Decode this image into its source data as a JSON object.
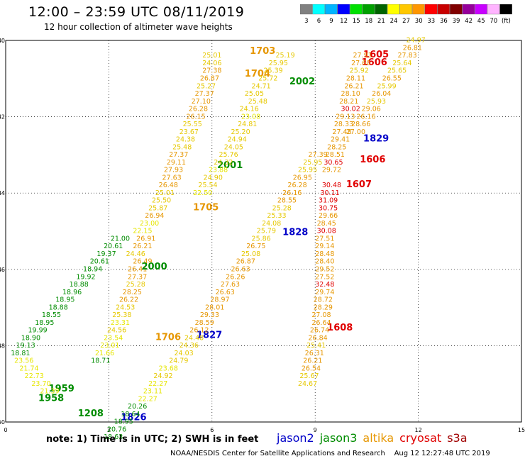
{
  "header": {
    "title": "12:00 – 23:59 UTC 08/11/2019",
    "subtitle": "12 hour collection of altimeter wave heights"
  },
  "colorbar": {
    "colors": [
      "#808080",
      "#00ffff",
      "#00b4ff",
      "#0000ff",
      "#00e000",
      "#00a000",
      "#006400",
      "#ffff00",
      "#ffc800",
      "#ff9600",
      "#ff0000",
      "#c80000",
      "#800000",
      "#96009b",
      "#c800ff",
      "#ffb4ff",
      "#000000"
    ],
    "labels": [
      "3",
      "6",
      "9",
      "12",
      "15",
      "18",
      "21",
      "24",
      "27",
      "30",
      "33",
      "36",
      "39",
      "42",
      "45",
      "70",
      "(ft)"
    ]
  },
  "map": {
    "lon_ticks": [
      "0",
      "3",
      "6",
      "9",
      "12",
      "15"
    ],
    "lat_ticks": [
      "40",
      "42",
      "44",
      "46",
      "48",
      "50"
    ],
    "xlim": [
      0,
      15
    ],
    "ylim": [
      40,
      50
    ]
  },
  "level_colors": {
    "g": "#008c00",
    "lg": "#1ea01e",
    "y": "#e6e600",
    "yo": "#e6c800",
    "o": "#e69600",
    "r": "#e00000"
  },
  "observations": [
    {
      "x": 5.72,
      "y": 40.45,
      "t": "25.01",
      "c": "yo"
    },
    {
      "x": 5.72,
      "y": 40.65,
      "t": "24.06",
      "c": "yo"
    },
    {
      "x": 5.72,
      "y": 40.85,
      "t": "27.38",
      "c": "o"
    },
    {
      "x": 5.65,
      "y": 41.05,
      "t": "26.87",
      "c": "o"
    },
    {
      "x": 5.55,
      "y": 41.25,
      "t": "25.27",
      "c": "yo"
    },
    {
      "x": 5.5,
      "y": 41.45,
      "t": "27.37",
      "c": "o"
    },
    {
      "x": 5.4,
      "y": 41.65,
      "t": "27.10",
      "c": "o"
    },
    {
      "x": 5.32,
      "y": 41.85,
      "t": "26.28",
      "c": "o"
    },
    {
      "x": 5.25,
      "y": 42.05,
      "t": "26.15",
      "c": "o"
    },
    {
      "x": 5.15,
      "y": 42.25,
      "t": "25.55",
      "c": "yo"
    },
    {
      "x": 5.05,
      "y": 42.45,
      "t": "23.67",
      "c": "yo"
    },
    {
      "x": 4.95,
      "y": 42.65,
      "t": "24.38",
      "c": "yo"
    },
    {
      "x": 4.85,
      "y": 42.85,
      "t": "25.48",
      "c": "yo"
    },
    {
      "x": 4.75,
      "y": 43.05,
      "t": "27.37",
      "c": "o"
    },
    {
      "x": 4.68,
      "y": 43.25,
      "t": "29.11",
      "c": "o"
    },
    {
      "x": 4.6,
      "y": 43.45,
      "t": "27.93",
      "c": "o"
    },
    {
      "x": 4.55,
      "y": 43.65,
      "t": "27.63",
      "c": "o"
    },
    {
      "x": 4.45,
      "y": 43.85,
      "t": "26.48",
      "c": "o"
    },
    {
      "x": 4.35,
      "y": 44.05,
      "t": "25.01",
      "c": "yo"
    },
    {
      "x": 4.25,
      "y": 44.25,
      "t": "25.50",
      "c": "yo"
    },
    {
      "x": 4.15,
      "y": 44.45,
      "t": "25.87",
      "c": "yo"
    },
    {
      "x": 4.05,
      "y": 44.65,
      "t": "26.94",
      "c": "o"
    },
    {
      "x": 3.9,
      "y": 44.85,
      "t": "23.00",
      "c": "y"
    },
    {
      "x": 3.7,
      "y": 45.05,
      "t": "22.15",
      "c": "y"
    },
    {
      "x": 3.8,
      "y": 45.25,
      "t": "26.91",
      "c": "o"
    },
    {
      "x": 3.7,
      "y": 45.45,
      "t": "26.21",
      "c": "o"
    },
    {
      "x": 3.5,
      "y": 45.65,
      "t": "24.46",
      "c": "yo"
    },
    {
      "x": 3.7,
      "y": 45.85,
      "t": "26.49",
      "c": "o"
    },
    {
      "x": 3.55,
      "y": 46.05,
      "t": "26.41",
      "c": "o"
    },
    {
      "x": 3.55,
      "y": 46.25,
      "t": "27.37",
      "c": "o"
    },
    {
      "x": 3.5,
      "y": 46.45,
      "t": "25.28",
      "c": "yo"
    },
    {
      "x": 3.4,
      "y": 46.65,
      "t": "28.25",
      "c": "o"
    },
    {
      "x": 3.3,
      "y": 46.85,
      "t": "26.22",
      "c": "o"
    },
    {
      "x": 3.2,
      "y": 47.05,
      "t": "24.53",
      "c": "yo"
    },
    {
      "x": 3.1,
      "y": 47.25,
      "t": "25.38",
      "c": "yo"
    },
    {
      "x": 3.05,
      "y": 47.45,
      "t": "23.31",
      "c": "y"
    },
    {
      "x": 2.95,
      "y": 47.65,
      "t": "24.56",
      "c": "yo"
    },
    {
      "x": 2.85,
      "y": 47.85,
      "t": "23.54",
      "c": "y"
    },
    {
      "x": 2.75,
      "y": 48.05,
      "t": "23.01",
      "c": "y"
    },
    {
      "x": 2.6,
      "y": 48.25,
      "t": "21.66",
      "c": "y"
    },
    {
      "x": 2.48,
      "y": 48.45,
      "t": "18.71",
      "c": "g"
    },
    {
      "x": 7.1,
      "y": 40.35,
      "t": "1703",
      "c": "o",
      "label": true
    },
    {
      "x": 6.95,
      "y": 40.95,
      "t": "1704",
      "c": "o",
      "label": true
    },
    {
      "x": 8.25,
      "y": 41.15,
      "t": "2002",
      "c": "g",
      "label": true
    },
    {
      "x": 6.15,
      "y": 43.35,
      "t": "2001",
      "c": "g",
      "label": true
    },
    {
      "x": 5.45,
      "y": 44.45,
      "t": "1705",
      "c": "o",
      "label": true
    },
    {
      "x": 3.95,
      "y": 46.0,
      "t": "2000",
      "c": "g",
      "label": true
    },
    {
      "x": 4.35,
      "y": 47.85,
      "t": "1706",
      "c": "o",
      "label": true
    },
    {
      "x": 5.55,
      "y": 47.8,
      "t": "1827",
      "c": "b",
      "label": true
    },
    {
      "x": 3.35,
      "y": 49.95,
      "t": "1826",
      "c": "b",
      "label": true
    },
    {
      "x": 2.1,
      "y": 49.85,
      "t": "1208",
      "c": "g",
      "label": true
    },
    {
      "x": 1.25,
      "y": 49.2,
      "t": "1959",
      "c": "g",
      "label": true
    },
    {
      "x": 0.95,
      "y": 49.45,
      "t": "1958",
      "c": "g",
      "label": true
    },
    {
      "x": 8.05,
      "y": 45.1,
      "t": "1828",
      "c": "b",
      "label": true
    },
    {
      "x": 10.4,
      "y": 42.65,
      "t": "1829",
      "c": "b",
      "label": true
    },
    {
      "x": 10.3,
      "y": 43.2,
      "t": "1606",
      "c": "r",
      "label": true
    },
    {
      "x": 9.9,
      "y": 43.85,
      "t": "1607",
      "c": "r",
      "label": true
    },
    {
      "x": 9.35,
      "y": 47.6,
      "t": "1608",
      "c": "r",
      "label": true
    },
    {
      "x": 10.4,
      "y": 40.45,
      "t": "1605",
      "c": "r",
      "label": true
    },
    {
      "x": 10.35,
      "y": 40.65,
      "t": "1606",
      "c": "r",
      "label": true
    },
    {
      "x": 7.85,
      "y": 40.45,
      "t": "25.19",
      "c": "yo"
    },
    {
      "x": 7.65,
      "y": 40.65,
      "t": "25.95",
      "c": "yo"
    },
    {
      "x": 7.5,
      "y": 40.85,
      "t": "25.39",
      "c": "yo"
    },
    {
      "x": 7.35,
      "y": 41.05,
      "t": "25.72",
      "c": "yo"
    },
    {
      "x": 7.15,
      "y": 41.25,
      "t": "24.71",
      "c": "yo"
    },
    {
      "x": 6.95,
      "y": 41.45,
      "t": "25.05",
      "c": "yo"
    },
    {
      "x": 7.05,
      "y": 41.65,
      "t": "25.48",
      "c": "yo"
    },
    {
      "x": 6.8,
      "y": 41.85,
      "t": "24.16",
      "c": "yo"
    },
    {
      "x": 6.85,
      "y": 42.05,
      "t": "23.08",
      "c": "y"
    },
    {
      "x": 6.75,
      "y": 42.25,
      "t": "24.81",
      "c": "yo"
    },
    {
      "x": 6.55,
      "y": 42.45,
      "t": "25.20",
      "c": "yo"
    },
    {
      "x": 6.45,
      "y": 42.65,
      "t": "24.94",
      "c": "yo"
    },
    {
      "x": 6.35,
      "y": 42.85,
      "t": "24.05",
      "c": "yo"
    },
    {
      "x": 6.2,
      "y": 43.05,
      "t": "25.76",
      "c": "yo"
    },
    {
      "x": 6.05,
      "y": 43.25,
      "t": "24.32",
      "c": "yo"
    },
    {
      "x": 5.9,
      "y": 43.45,
      "t": "23.88",
      "c": "y"
    },
    {
      "x": 5.75,
      "y": 43.65,
      "t": "24.90",
      "c": "yo"
    },
    {
      "x": 5.6,
      "y": 43.85,
      "t": "25.54",
      "c": "yo"
    },
    {
      "x": 5.45,
      "y": 44.05,
      "t": "22.50",
      "c": "y"
    },
    {
      "x": 10.1,
      "y": 40.45,
      "t": "27.91",
      "c": "o"
    },
    {
      "x": 10.05,
      "y": 40.65,
      "t": "27.60",
      "c": "o"
    },
    {
      "x": 10.0,
      "y": 40.85,
      "t": "25.92",
      "c": "yo"
    },
    {
      "x": 9.9,
      "y": 41.05,
      "t": "28.11",
      "c": "o"
    },
    {
      "x": 9.85,
      "y": 41.25,
      "t": "26.21",
      "c": "o"
    },
    {
      "x": 9.75,
      "y": 41.45,
      "t": "28.10",
      "c": "o"
    },
    {
      "x": 9.7,
      "y": 41.65,
      "t": "28.21",
      "c": "o"
    },
    {
      "x": 9.75,
      "y": 41.85,
      "t": "30.02",
      "c": "r"
    },
    {
      "x": 9.6,
      "y": 42.05,
      "t": "29.13",
      "c": "o"
    },
    {
      "x": 9.55,
      "y": 42.25,
      "t": "28.33",
      "c": "o"
    },
    {
      "x": 9.5,
      "y": 42.45,
      "t": "27.48",
      "c": "o"
    },
    {
      "x": 9.45,
      "y": 42.65,
      "t": "29.41",
      "c": "o"
    },
    {
      "x": 9.35,
      "y": 42.85,
      "t": "28.25",
      "c": "o"
    },
    {
      "x": 9.3,
      "y": 43.05,
      "t": "28.51",
      "c": "o"
    },
    {
      "x": 9.25,
      "y": 43.25,
      "t": "30.65",
      "c": "r"
    },
    {
      "x": 9.2,
      "y": 43.45,
      "t": "29.72",
      "c": "o"
    },
    {
      "x": 9.2,
      "y": 43.85,
      "t": "30.48",
      "c": "r"
    },
    {
      "x": 9.15,
      "y": 44.05,
      "t": "30.11",
      "c": "r"
    },
    {
      "x": 9.1,
      "y": 44.25,
      "t": "31.09",
      "c": "r"
    },
    {
      "x": 9.1,
      "y": 44.45,
      "t": "30.75",
      "c": "r"
    },
    {
      "x": 9.1,
      "y": 44.65,
      "t": "29.66",
      "c": "o"
    },
    {
      "x": 9.05,
      "y": 44.85,
      "t": "28.45",
      "c": "o"
    },
    {
      "x": 9.05,
      "y": 45.05,
      "t": "30.08",
      "c": "r"
    },
    {
      "x": 9.0,
      "y": 45.25,
      "t": "27.51",
      "c": "o"
    },
    {
      "x": 9.0,
      "y": 45.45,
      "t": "29.14",
      "c": "o"
    },
    {
      "x": 9.0,
      "y": 45.65,
      "t": "28.48",
      "c": "o"
    },
    {
      "x": 9.0,
      "y": 45.85,
      "t": "28.40",
      "c": "o"
    },
    {
      "x": 9.0,
      "y": 46.05,
      "t": "29.52",
      "c": "o"
    },
    {
      "x": 9.0,
      "y": 46.25,
      "t": "27.52",
      "c": "o"
    },
    {
      "x": 9.0,
      "y": 46.45,
      "t": "32.48",
      "c": "r"
    },
    {
      "x": 9.0,
      "y": 46.65,
      "t": "29.74",
      "c": "o"
    },
    {
      "x": 8.95,
      "y": 46.85,
      "t": "28.72",
      "c": "o"
    },
    {
      "x": 8.95,
      "y": 47.05,
      "t": "28.29",
      "c": "o"
    },
    {
      "x": 8.9,
      "y": 47.25,
      "t": "27.08",
      "c": "o"
    },
    {
      "x": 8.9,
      "y": 47.45,
      "t": "26.64",
      "c": "o"
    },
    {
      "x": 8.85,
      "y": 47.65,
      "t": "26.74",
      "c": "o"
    },
    {
      "x": 8.8,
      "y": 47.85,
      "t": "26.84",
      "c": "o"
    },
    {
      "x": 8.75,
      "y": 48.05,
      "t": "25.41",
      "c": "yo"
    },
    {
      "x": 8.7,
      "y": 48.25,
      "t": "26.31",
      "c": "o"
    },
    {
      "x": 8.65,
      "y": 48.45,
      "t": "26.21",
      "c": "o"
    },
    {
      "x": 8.6,
      "y": 48.65,
      "t": "26.54",
      "c": "o"
    },
    {
      "x": 8.55,
      "y": 48.85,
      "t": "25.67",
      "c": "yo"
    },
    {
      "x": 8.5,
      "y": 49.05,
      "t": "24.67",
      "c": "yo"
    },
    {
      "x": 11.65,
      "y": 40.05,
      "t": "24.97",
      "c": "yo"
    },
    {
      "x": 11.55,
      "y": 40.25,
      "t": "26.81",
      "c": "o"
    },
    {
      "x": 11.4,
      "y": 40.45,
      "t": "27.83",
      "c": "o"
    },
    {
      "x": 11.25,
      "y": 40.65,
      "t": "25.64",
      "c": "yo"
    },
    {
      "x": 11.1,
      "y": 40.85,
      "t": "25.65",
      "c": "yo"
    },
    {
      "x": 10.95,
      "y": 41.05,
      "t": "26.55",
      "c": "o"
    },
    {
      "x": 10.8,
      "y": 41.25,
      "t": "25.99",
      "c": "yo"
    },
    {
      "x": 10.65,
      "y": 41.45,
      "t": "26.04",
      "c": "o"
    },
    {
      "x": 10.5,
      "y": 41.65,
      "t": "25.93",
      "c": "yo"
    },
    {
      "x": 10.35,
      "y": 41.85,
      "t": "29.06",
      "c": "o"
    },
    {
      "x": 10.2,
      "y": 42.05,
      "t": "26.16",
      "c": "o"
    },
    {
      "x": 10.05,
      "y": 42.25,
      "t": "28.66",
      "c": "o"
    },
    {
      "x": 9.9,
      "y": 42.45,
      "t": "27.00",
      "c": "o"
    },
    {
      "x": 8.8,
      "y": 43.05,
      "t": "27.39",
      "c": "o"
    },
    {
      "x": 8.65,
      "y": 43.25,
      "t": "25.95",
      "c": "yo"
    },
    {
      "x": 8.5,
      "y": 43.45,
      "t": "25.95",
      "c": "yo"
    },
    {
      "x": 8.35,
      "y": 43.65,
      "t": "26.95",
      "c": "o"
    },
    {
      "x": 8.2,
      "y": 43.85,
      "t": "26.28",
      "c": "o"
    },
    {
      "x": 8.05,
      "y": 44.05,
      "t": "26.16",
      "c": "o"
    },
    {
      "x": 7.9,
      "y": 44.25,
      "t": "28.55",
      "c": "o"
    },
    {
      "x": 7.75,
      "y": 44.45,
      "t": "25.28",
      "c": "yo"
    },
    {
      "x": 7.6,
      "y": 44.65,
      "t": "25.33",
      "c": "yo"
    },
    {
      "x": 7.45,
      "y": 44.85,
      "t": "24.08",
      "c": "yo"
    },
    {
      "x": 7.3,
      "y": 45.05,
      "t": "25.79",
      "c": "yo"
    },
    {
      "x": 7.15,
      "y": 45.25,
      "t": "25.86",
      "c": "yo"
    },
    {
      "x": 7.0,
      "y": 45.45,
      "t": "26.75",
      "c": "o"
    },
    {
      "x": 6.85,
      "y": 45.65,
      "t": "25.08",
      "c": "yo"
    },
    {
      "x": 6.7,
      "y": 45.85,
      "t": "26.87",
      "c": "o"
    },
    {
      "x": 6.55,
      "y": 46.05,
      "t": "26.63",
      "c": "o"
    },
    {
      "x": 6.4,
      "y": 46.25,
      "t": "26.26",
      "c": "o"
    },
    {
      "x": 6.25,
      "y": 46.45,
      "t": "27.63",
      "c": "o"
    },
    {
      "x": 6.1,
      "y": 46.65,
      "t": "26.63",
      "c": "o"
    },
    {
      "x": 5.95,
      "y": 46.85,
      "t": "28.97",
      "c": "o"
    },
    {
      "x": 5.8,
      "y": 47.05,
      "t": "28.01",
      "c": "o"
    },
    {
      "x": 5.65,
      "y": 47.25,
      "t": "29.33",
      "c": "o"
    },
    {
      "x": 5.5,
      "y": 47.45,
      "t": "28.59",
      "c": "o"
    },
    {
      "x": 5.35,
      "y": 47.65,
      "t": "26.12",
      "c": "o"
    },
    {
      "x": 5.2,
      "y": 47.85,
      "t": "24.48",
      "c": "yo"
    },
    {
      "x": 5.05,
      "y": 48.05,
      "t": "24.36",
      "c": "yo"
    },
    {
      "x": 4.9,
      "y": 48.25,
      "t": "24.03",
      "c": "yo"
    },
    {
      "x": 4.75,
      "y": 48.45,
      "t": "24.79",
      "c": "yo"
    },
    {
      "x": 4.45,
      "y": 48.65,
      "t": "23.68",
      "c": "y"
    },
    {
      "x": 4.3,
      "y": 48.85,
      "t": "24.92",
      "c": "yo"
    },
    {
      "x": 4.15,
      "y": 49.05,
      "t": "22.27",
      "c": "y"
    },
    {
      "x": 4.0,
      "y": 49.25,
      "t": "23.11",
      "c": "y"
    },
    {
      "x": 3.85,
      "y": 49.45,
      "t": "22.27",
      "c": "y"
    },
    {
      "x": 3.55,
      "y": 49.65,
      "t": "20.26",
      "c": "g"
    },
    {
      "x": 3.35,
      "y": 49.85,
      "t": "18.64",
      "c": "g"
    },
    {
      "x": 3.15,
      "y": 50.05,
      "t": "18.95",
      "c": "g"
    },
    {
      "x": 2.95,
      "y": 50.25,
      "t": "20.76",
      "c": "g"
    },
    {
      "x": 2.85,
      "y": 50.45,
      "t": "18.63",
      "c": "g"
    },
    {
      "x": 3.05,
      "y": 45.25,
      "t": "21.00",
      "c": "g"
    },
    {
      "x": 2.85,
      "y": 45.45,
      "t": "20.61",
      "c": "g"
    },
    {
      "x": 2.65,
      "y": 45.65,
      "t": "19.37",
      "c": "g"
    },
    {
      "x": 2.45,
      "y": 45.85,
      "t": "20.61",
      "c": "g"
    },
    {
      "x": 2.25,
      "y": 46.05,
      "t": "18.94",
      "c": "g"
    },
    {
      "x": 2.05,
      "y": 46.25,
      "t": "19.92",
      "c": "g"
    },
    {
      "x": 1.85,
      "y": 46.45,
      "t": "18.88",
      "c": "g"
    },
    {
      "x": 1.65,
      "y": 46.65,
      "t": "18.96",
      "c": "g"
    },
    {
      "x": 1.45,
      "y": 46.85,
      "t": "18.95",
      "c": "g"
    },
    {
      "x": 1.25,
      "y": 47.05,
      "t": "18.88",
      "c": "g"
    },
    {
      "x": 1.05,
      "y": 47.25,
      "t": "18.55",
      "c": "g"
    },
    {
      "x": 0.85,
      "y": 47.45,
      "t": "18.95",
      "c": "g"
    },
    {
      "x": 0.65,
      "y": 47.65,
      "t": "19.99",
      "c": "g"
    },
    {
      "x": 0.45,
      "y": 47.85,
      "t": "18.90",
      "c": "g"
    },
    {
      "x": 0.3,
      "y": 48.05,
      "t": "19.13",
      "c": "g"
    },
    {
      "x": 0.15,
      "y": 48.25,
      "t": "18.81",
      "c": "g"
    },
    {
      "x": 0.25,
      "y": 48.45,
      "t": "23.56",
      "c": "y"
    },
    {
      "x": 0.4,
      "y": 48.65,
      "t": "21.74",
      "c": "y"
    },
    {
      "x": 0.55,
      "y": 48.85,
      "t": "22.73",
      "c": "y"
    },
    {
      "x": 0.75,
      "y": 49.05,
      "t": "23.70",
      "c": "y"
    },
    {
      "x": 1.0,
      "y": 49.25,
      "t": "21.39",
      "c": "y"
    }
  ],
  "footer": {
    "note": "note:  1) Time is in UTC;  2) SWH is in feet",
    "legend": [
      {
        "name": "jason2",
        "color": "#0000c8"
      },
      {
        "name": "jason3",
        "color": "#008c00"
      },
      {
        "name": "altika",
        "color": "#e69600"
      },
      {
        "name": "cryosat",
        "color": "#e00000"
      },
      {
        "name": "s3a",
        "color": "#a00000"
      }
    ],
    "credit": "NOAA/NESDIS Center for Satellite Applications and Research    Aug 12 12:27:48 UTC 2019"
  }
}
